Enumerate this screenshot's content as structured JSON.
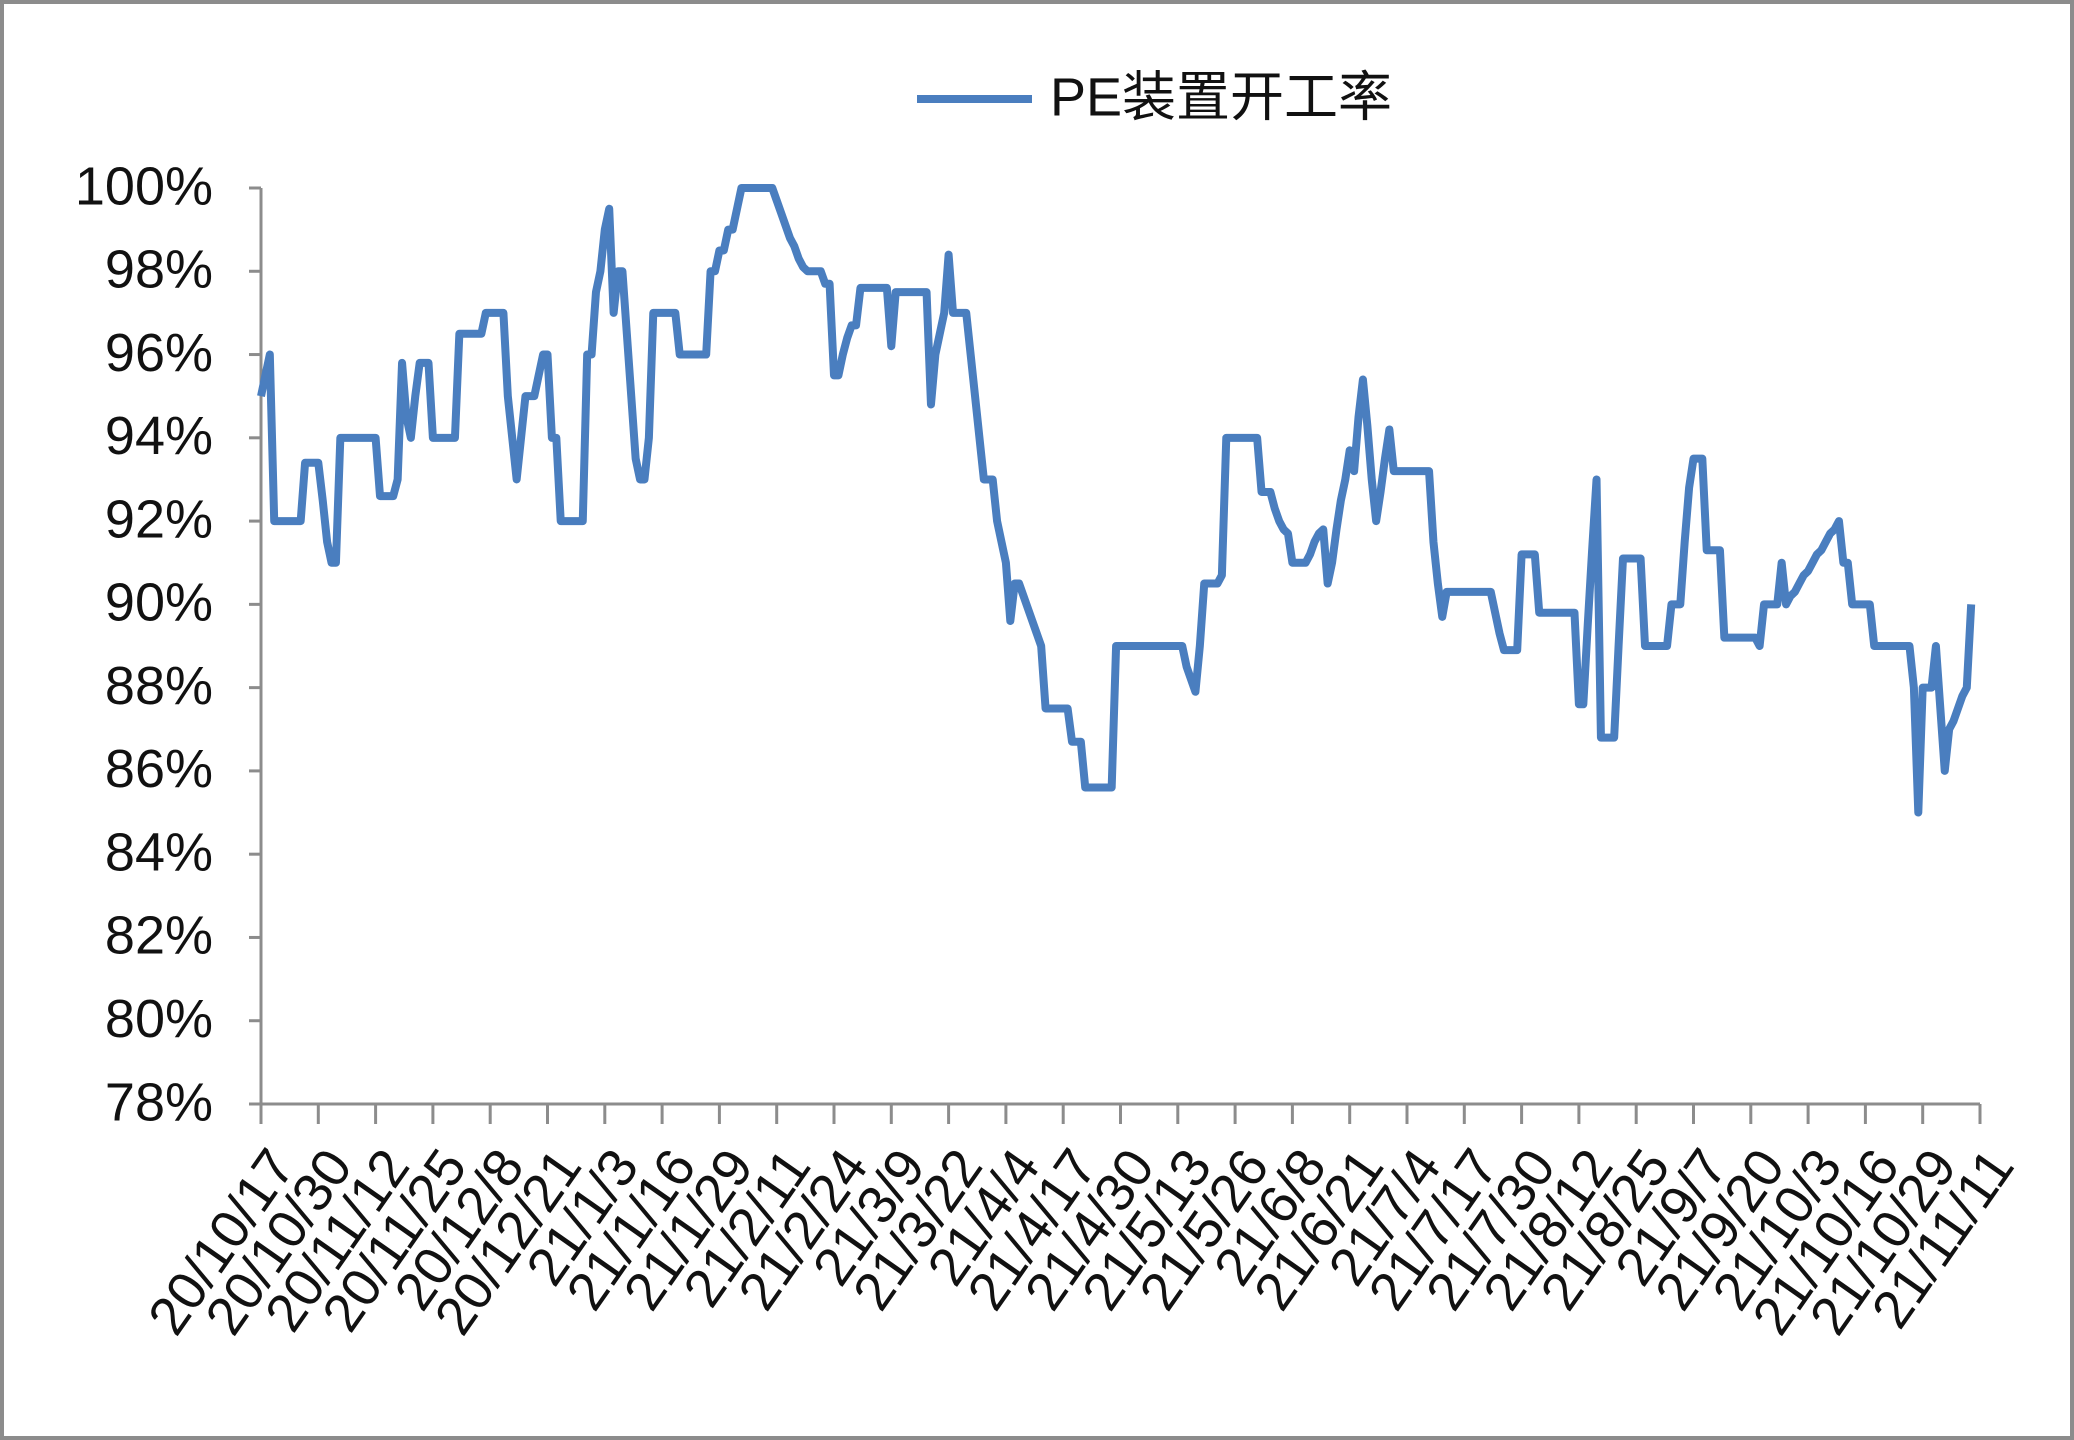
{
  "chart_data": {
    "type": "line",
    "categories": [
      "20/10/17",
      null,
      null,
      null,
      null,
      null,
      null,
      null,
      null,
      null,
      null,
      null,
      null,
      "20/10/30",
      null,
      null,
      null,
      null,
      null,
      null,
      null,
      null,
      null,
      null,
      null,
      null,
      "20/11/12",
      null,
      null,
      null,
      null,
      null,
      null,
      null,
      null,
      null,
      null,
      null,
      null,
      "20/11/25",
      null,
      null,
      null,
      null,
      null,
      null,
      null,
      null,
      null,
      null,
      null,
      null,
      "20/12/8",
      null,
      null,
      null,
      null,
      null,
      null,
      null,
      null,
      null,
      null,
      null,
      null,
      "20/12/21",
      null,
      null,
      null,
      null,
      null,
      null,
      null,
      null,
      null,
      null,
      null,
      null,
      "21/1/3",
      null,
      null,
      null,
      null,
      null,
      null,
      null,
      null,
      null,
      null,
      null,
      null,
      "21/1/16",
      null,
      null,
      null,
      null,
      null,
      null,
      null,
      null,
      null,
      null,
      null,
      null,
      "21/1/29",
      null,
      null,
      null,
      null,
      null,
      null,
      null,
      null,
      null,
      null,
      null,
      null,
      "21/2/11",
      null,
      null,
      null,
      null,
      null,
      null,
      null,
      null,
      null,
      null,
      null,
      null,
      "21/2/24",
      null,
      null,
      null,
      null,
      null,
      null,
      null,
      null,
      null,
      null,
      null,
      null,
      "21/3/9",
      null,
      null,
      null,
      null,
      null,
      null,
      null,
      null,
      null,
      null,
      null,
      null,
      "21/3/22",
      null,
      null,
      null,
      null,
      null,
      null,
      null,
      null,
      null,
      null,
      null,
      null,
      "21/4/4",
      null,
      null,
      null,
      null,
      null,
      null,
      null,
      null,
      null,
      null,
      null,
      null,
      "21/4/17",
      null,
      null,
      null,
      null,
      null,
      null,
      null,
      null,
      null,
      null,
      null,
      null,
      "21/4/30",
      null,
      null,
      null,
      null,
      null,
      null,
      null,
      null,
      null,
      null,
      null,
      null,
      "21/5/13",
      null,
      null,
      null,
      null,
      null,
      null,
      null,
      null,
      null,
      null,
      null,
      null,
      "21/5/26",
      null,
      null,
      null,
      null,
      null,
      null,
      null,
      null,
      null,
      null,
      null,
      null,
      "21/6/8",
      null,
      null,
      null,
      null,
      null,
      null,
      null,
      null,
      null,
      null,
      null,
      null,
      "21/6/21",
      null,
      null,
      null,
      null,
      null,
      null,
      null,
      null,
      null,
      null,
      null,
      null,
      "21/7/4",
      null,
      null,
      null,
      null,
      null,
      null,
      null,
      null,
      null,
      null,
      null,
      null,
      "21/7/17",
      null,
      null,
      null,
      null,
      null,
      null,
      null,
      null,
      null,
      null,
      null,
      null,
      "21/7/30",
      null,
      null,
      null,
      null,
      null,
      null,
      null,
      null,
      null,
      null,
      null,
      null,
      "21/8/12",
      null,
      null,
      null,
      null,
      null,
      null,
      null,
      null,
      null,
      null,
      null,
      null,
      "21/8/25",
      null,
      null,
      null,
      null,
      null,
      null,
      null,
      null,
      null,
      null,
      null,
      null,
      "21/9/7",
      null,
      null,
      null,
      null,
      null,
      null,
      null,
      null,
      null,
      null,
      null,
      null,
      "21/9/20",
      null,
      null,
      null,
      null,
      null,
      null,
      null,
      null,
      null,
      null,
      null,
      null,
      "21/10/3",
      null,
      null,
      null,
      null,
      null,
      null,
      null,
      null,
      null,
      null,
      null,
      null,
      "21/10/16",
      null,
      null,
      null,
      null,
      null,
      null,
      null,
      null,
      null,
      null,
      null,
      null,
      "21/10/29",
      null,
      null,
      null,
      null,
      null,
      null,
      null,
      null,
      null,
      null,
      null,
      null,
      "21/11/11"
    ],
    "series": [
      {
        "name": "PE装置开工率",
        "color": "#4a7ebf",
        "values": [
          95,
          95.5,
          96,
          92,
          92,
          92,
          92,
          92,
          92,
          92,
          93.4,
          93.4,
          93.4,
          93.4,
          92.5,
          91.5,
          91,
          91,
          94,
          94,
          94,
          94,
          94,
          94,
          94,
          94,
          94,
          92.6,
          92.6,
          92.6,
          92.6,
          93,
          95.8,
          94.5,
          94,
          95,
          95.8,
          95.8,
          95.8,
          94,
          94,
          94,
          94,
          94,
          94,
          96.5,
          96.5,
          96.5,
          96.5,
          96.5,
          96.5,
          97,
          97,
          97,
          97,
          97,
          95,
          94,
          93,
          94,
          95,
          95,
          95,
          95.5,
          96,
          96,
          94,
          94,
          92,
          92,
          92,
          92,
          92,
          92,
          96,
          96,
          97.5,
          98,
          99,
          99.5,
          97,
          98,
          98,
          96.5,
          95,
          93.5,
          93,
          93,
          94,
          97,
          97,
          97,
          97,
          97,
          97,
          96,
          96,
          96,
          96,
          96,
          96,
          96,
          98,
          98,
          98.5,
          98.5,
          99,
          99,
          99.5,
          100,
          100,
          100,
          100,
          100,
          100,
          100,
          100,
          99.7,
          99.4,
          99.1,
          98.8,
          98.6,
          98.3,
          98.1,
          98,
          98,
          98,
          98,
          97.7,
          97.7,
          95.5,
          95.5,
          96,
          96.4,
          96.7,
          96.7,
          97.6,
          97.6,
          97.6,
          97.6,
          97.6,
          97.6,
          97.6,
          96.2,
          97.5,
          97.5,
          97.5,
          97.5,
          97.5,
          97.5,
          97.5,
          97.5,
          94.8,
          96,
          96.5,
          97,
          98.4,
          97,
          97,
          97,
          97,
          96,
          95,
          94,
          93,
          93,
          93,
          92,
          91.5,
          91,
          89.6,
          90.5,
          90.5,
          90.2,
          89.9,
          89.6,
          89.3,
          89,
          87.5,
          87.5,
          87.5,
          87.5,
          87.5,
          87.5,
          86.7,
          86.7,
          86.7,
          85.6,
          85.6,
          85.6,
          85.6,
          85.6,
          85.6,
          85.6,
          89,
          89,
          89,
          89,
          89,
          89,
          89,
          89,
          89,
          89,
          89,
          89,
          89,
          89,
          89,
          89,
          88.5,
          88.2,
          87.9,
          89,
          90.5,
          90.5,
          90.5,
          90.5,
          90.7,
          94,
          94,
          94,
          94,
          94,
          94,
          94,
          94,
          92.7,
          92.7,
          92.7,
          92.3,
          92,
          91.8,
          91.7,
          91,
          91,
          91,
          91,
          91.2,
          91.5,
          91.7,
          91.8,
          90.5,
          91,
          91.8,
          92.5,
          93,
          93.7,
          93.2,
          94.5,
          95.4,
          94.3,
          93,
          92,
          92.7,
          93.5,
          94.2,
          93.2,
          93.2,
          93.2,
          93.2,
          93.2,
          93.2,
          93.2,
          93.2,
          93.2,
          91.5,
          90.5,
          89.7,
          90.3,
          90.3,
          90.3,
          90.3,
          90.3,
          90.3,
          90.3,
          90.3,
          90.3,
          90.3,
          90.3,
          89.8,
          89.3,
          88.9,
          88.9,
          88.9,
          88.9,
          91.2,
          91.2,
          91.2,
          91.2,
          89.8,
          89.8,
          89.8,
          89.8,
          89.8,
          89.8,
          89.8,
          89.8,
          89.8,
          87.6,
          87.6,
          89.5,
          91.3,
          93,
          86.8,
          86.8,
          86.8,
          86.8,
          89,
          91.1,
          91.1,
          91.1,
          91.1,
          91.1,
          89,
          89,
          89,
          89,
          89,
          89,
          90,
          90,
          90,
          91.5,
          92.8,
          93.5,
          93.5,
          93.5,
          91.3,
          91.3,
          91.3,
          91.3,
          89.2,
          89.2,
          89.2,
          89.2,
          89.2,
          89.2,
          89.2,
          89.2,
          89,
          90,
          90,
          90,
          90,
          91,
          90,
          90.2,
          90.3,
          90.5,
          90.7,
          90.8,
          91,
          91.2,
          91.3,
          91.5,
          91.7,
          91.8,
          92,
          91,
          91,
          90,
          90,
          90,
          90,
          90,
          89,
          89,
          89,
          89,
          89,
          89,
          89,
          89,
          89,
          88,
          85,
          88,
          88,
          88,
          89,
          87.5,
          86,
          87,
          87.2,
          87.5,
          87.8,
          88,
          90,
          null,
          null
        ]
      }
    ],
    "ylim": [
      78,
      100
    ],
    "yticks": [
      {
        "value": 78,
        "label": "78%"
      },
      {
        "value": 80,
        "label": "80%"
      },
      {
        "value": 82,
        "label": "82%"
      },
      {
        "value": 84,
        "label": "84%"
      },
      {
        "value": 86,
        "label": "86%"
      },
      {
        "value": 88,
        "label": "88%"
      },
      {
        "value": 90,
        "label": "90%"
      },
      {
        "value": 92,
        "label": "92%"
      },
      {
        "value": 94,
        "label": "94%"
      },
      {
        "value": 96,
        "label": "96%"
      },
      {
        "value": 98,
        "label": "98%"
      },
      {
        "value": 100,
        "label": "100%"
      }
    ],
    "legend": "top"
  }
}
